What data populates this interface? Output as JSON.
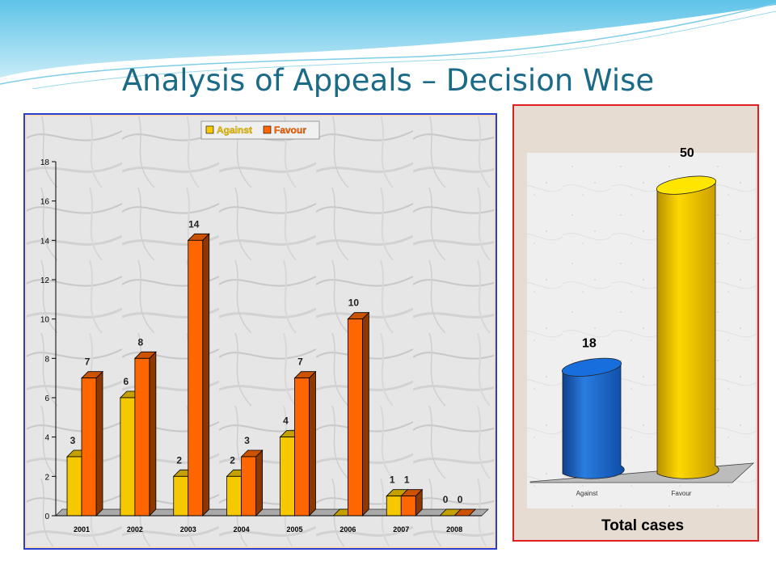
{
  "title": "Analysis of Appeals – Decision Wise",
  "colors": {
    "against": "#f5c800",
    "favour": "#ff6600",
    "against_total": "#1560c0"
  },
  "chart_data": [
    {
      "type": "bar",
      "categories": [
        "2001",
        "2002",
        "2003",
        "2004",
        "2005",
        "2006",
        "2007",
        "2008"
      ],
      "series": [
        {
          "name": "Against",
          "values": [
            3,
            6,
            2,
            2,
            4,
            0,
            1,
            0
          ],
          "labels": [
            "3",
            "6",
            "2",
            "2",
            "4",
            "",
            "1",
            "0"
          ]
        },
        {
          "name": "Favour",
          "values": [
            7,
            8,
            14,
            3,
            7,
            10,
            1,
            0
          ],
          "labels": [
            "7",
            "8",
            "14",
            "3",
            "7",
            "10",
            "1",
            "0"
          ]
        }
      ],
      "yticks": [
        "0",
        "2",
        "4",
        "6",
        "8",
        "10",
        "12",
        "14",
        "16",
        "18"
      ],
      "ylim": [
        0,
        18
      ],
      "legend_position": "top"
    },
    {
      "type": "bar",
      "categories": [
        "Against",
        "Favour"
      ],
      "values": [
        18,
        50
      ],
      "value_labels": [
        "18",
        "50"
      ],
      "xlabel": "Total cases"
    }
  ]
}
